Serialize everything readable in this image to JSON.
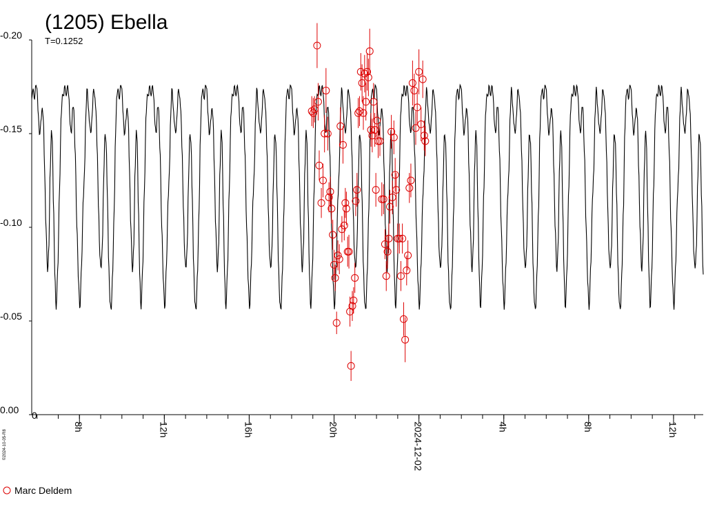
{
  "chart_data": {
    "type": "scatter",
    "title": "(1205) Ebella",
    "subtitle": "T=0.1252",
    "stamp": "©2024-10-05-R8",
    "ylim": [
      0.0,
      0.2
    ],
    "y_inverted": true,
    "y_ticks": [
      {
        "value": 0.2,
        "label": "-0.20"
      },
      {
        "value": 0.15,
        "label": "-0.15"
      },
      {
        "value": 0.1,
        "label": "-0.10"
      },
      {
        "value": 0.05,
        "label": "-0.05"
      },
      {
        "value": 0.0,
        "label": "0.00"
      }
    ],
    "xlim": [
      5.75,
      37.4
    ],
    "x_unit": "hours from 2024-12-01 00:00",
    "x_ticks": [
      {
        "value": 8,
        "label": "8h"
      },
      {
        "value": 12,
        "label": "12h"
      },
      {
        "value": 16,
        "label": "16h"
      },
      {
        "value": 20,
        "label": "20h"
      },
      {
        "value": 24,
        "label": "2024-12-02"
      },
      {
        "value": 28,
        "label": "4h"
      },
      {
        "value": 32,
        "label": "8h"
      },
      {
        "value": 36,
        "label": "12h"
      }
    ],
    "minor_tick_interval_h": 1,
    "model": {
      "name": "fitted lightcurve",
      "color": "#000000",
      "period_h": 4.0,
      "phase_ref_h": 6.0,
      "profile": [
        [
          0.0,
          0.174
        ],
        [
          0.015,
          0.16
        ],
        [
          0.03,
          0.149
        ],
        [
          0.05,
          0.158
        ],
        [
          0.06,
          0.164
        ],
        [
          0.075,
          0.158
        ],
        [
          0.09,
          0.13
        ],
        [
          0.105,
          0.1
        ],
        [
          0.125,
          0.076
        ],
        [
          0.14,
          0.09
        ],
        [
          0.155,
          0.13
        ],
        [
          0.17,
          0.152
        ],
        [
          0.18,
          0.146
        ],
        [
          0.195,
          0.11
        ],
        [
          0.21,
          0.075
        ],
        [
          0.225,
          0.056
        ],
        [
          0.245,
          0.078
        ],
        [
          0.265,
          0.12
        ],
        [
          0.285,
          0.16
        ],
        [
          0.3,
          0.171
        ],
        [
          0.315,
          0.17
        ],
        [
          0.325,
          0.176
        ],
        [
          0.345,
          0.17
        ],
        [
          0.36,
          0.176
        ],
        [
          0.375,
          0.17
        ],
        [
          0.39,
          0.155
        ],
        [
          0.405,
          0.15
        ],
        [
          0.42,
          0.164
        ],
        [
          0.432,
          0.164
        ],
        [
          0.45,
          0.14
        ],
        [
          0.47,
          0.1
        ],
        [
          0.49,
          0.07
        ],
        [
          0.505,
          0.056
        ],
        [
          0.525,
          0.08
        ],
        [
          0.545,
          0.115
        ],
        [
          0.56,
          0.13
        ],
        [
          0.575,
          0.16
        ],
        [
          0.59,
          0.175
        ],
        [
          0.605,
          0.164
        ],
        [
          0.62,
          0.155
        ],
        [
          0.635,
          0.15
        ],
        [
          0.65,
          0.16
        ],
        [
          0.665,
          0.174
        ],
        [
          0.68,
          0.17
        ],
        [
          0.695,
          0.162
        ],
        [
          0.71,
          0.14
        ],
        [
          0.725,
          0.11
        ],
        [
          0.74,
          0.085
        ],
        [
          0.755,
          0.078
        ],
        [
          0.77,
          0.09
        ],
        [
          0.785,
          0.125
        ],
        [
          0.8,
          0.15
        ],
        [
          0.815,
          0.145
        ],
        [
          0.83,
          0.115
        ],
        [
          0.845,
          0.08
        ],
        [
          0.86,
          0.06
        ],
        [
          0.875,
          0.056
        ],
        [
          0.89,
          0.075
        ],
        [
          0.91,
          0.11
        ],
        [
          0.925,
          0.15
        ],
        [
          0.94,
          0.17
        ],
        [
          0.955,
          0.174
        ],
        [
          0.97,
          0.168
        ],
        [
          0.985,
          0.176
        ],
        [
          1.0,
          0.174
        ]
      ]
    },
    "series": [
      {
        "name": "Marc Deldem",
        "color": "#dd0000",
        "marker": "open-circle",
        "points": [
          [
            18.95,
            0.162,
            0.008
          ],
          [
            19.02,
            0.161,
            0.008
          ],
          [
            19.08,
            0.163,
            0.007
          ],
          [
            19.2,
            0.197,
            0.012
          ],
          [
            19.25,
            0.167,
            0.01
          ],
          [
            19.3,
            0.133,
            0.008
          ],
          [
            19.4,
            0.113,
            0.008
          ],
          [
            19.48,
            0.125,
            0.009
          ],
          [
            19.55,
            0.15,
            0.01
          ],
          [
            19.62,
            0.173,
            0.012
          ],
          [
            19.7,
            0.15,
            0.009
          ],
          [
            19.76,
            0.116,
            0.008
          ],
          [
            19.82,
            0.119,
            0.008
          ],
          [
            19.88,
            0.11,
            0.008
          ],
          [
            19.94,
            0.096,
            0.008
          ],
          [
            20.0,
            0.08,
            0.008
          ],
          [
            20.05,
            0.073,
            0.007
          ],
          [
            20.12,
            0.049,
            0.006
          ],
          [
            20.18,
            0.085,
            0.008
          ],
          [
            20.25,
            0.083,
            0.008
          ],
          [
            20.3,
            0.154,
            0.01
          ],
          [
            20.37,
            0.099,
            0.007
          ],
          [
            20.42,
            0.144,
            0.01
          ],
          [
            20.48,
            0.101,
            0.008
          ],
          [
            20.53,
            0.113,
            0.008
          ],
          [
            20.58,
            0.11,
            0.009
          ],
          [
            20.64,
            0.087,
            0.008
          ],
          [
            20.7,
            0.087,
            0.009
          ],
          [
            20.75,
            0.055,
            0.008
          ],
          [
            20.8,
            0.026,
            0.008
          ],
          [
            20.86,
            0.058,
            0.008
          ],
          [
            20.92,
            0.061,
            0.007
          ],
          [
            20.98,
            0.073,
            0.008
          ],
          [
            21.02,
            0.114,
            0.008
          ],
          [
            21.08,
            0.12,
            0.009
          ],
          [
            21.14,
            0.161,
            0.008
          ],
          [
            21.2,
            0.162,
            0.008
          ],
          [
            21.26,
            0.183,
            0.01
          ],
          [
            21.32,
            0.177,
            0.01
          ],
          [
            21.38,
            0.161,
            0.009
          ],
          [
            21.44,
            0.182,
            0.01
          ],
          [
            21.5,
            0.167,
            0.01
          ],
          [
            21.56,
            0.183,
            0.01
          ],
          [
            21.62,
            0.18,
            0.01
          ],
          [
            21.68,
            0.194,
            0.012
          ],
          [
            21.74,
            0.152,
            0.009
          ],
          [
            21.8,
            0.149,
            0.009
          ],
          [
            21.86,
            0.167,
            0.01
          ],
          [
            21.92,
            0.152,
            0.009
          ],
          [
            21.97,
            0.12,
            0.009
          ],
          [
            22.02,
            0.157,
            0.009
          ],
          [
            22.08,
            0.146,
            0.009
          ],
          [
            22.16,
            0.146,
            0.008
          ],
          [
            22.25,
            0.115,
            0.009
          ],
          [
            22.33,
            0.115,
            0.008
          ],
          [
            22.4,
            0.091,
            0.008
          ],
          [
            22.46,
            0.074,
            0.008
          ],
          [
            22.52,
            0.087,
            0.009
          ],
          [
            22.58,
            0.094,
            0.008
          ],
          [
            22.63,
            0.111,
            0.009
          ],
          [
            22.7,
            0.151,
            0.009
          ],
          [
            22.75,
            0.116,
            0.009
          ],
          [
            22.82,
            0.148,
            0.009
          ],
          [
            22.88,
            0.128,
            0.009
          ],
          [
            22.93,
            0.12,
            0.009
          ],
          [
            23.0,
            0.094,
            0.008
          ],
          [
            23.08,
            0.094,
            0.008
          ],
          [
            23.15,
            0.074,
            0.008
          ],
          [
            23.22,
            0.094,
            0.008
          ],
          [
            23.28,
            0.051,
            0.009
          ],
          [
            23.35,
            0.04,
            0.012
          ],
          [
            23.42,
            0.077,
            0.008
          ],
          [
            23.48,
            0.085,
            0.008
          ],
          [
            23.55,
            0.121,
            0.008
          ],
          [
            23.62,
            0.125,
            0.009
          ],
          [
            23.7,
            0.177,
            0.012
          ],
          [
            23.78,
            0.173,
            0.009
          ],
          [
            23.85,
            0.153,
            0.009
          ],
          [
            23.92,
            0.164,
            0.009
          ],
          [
            24.0,
            0.183,
            0.012
          ],
          [
            24.1,
            0.155,
            0.009
          ],
          [
            24.18,
            0.179,
            0.01
          ],
          [
            24.25,
            0.149,
            0.008
          ],
          [
            24.3,
            0.146,
            0.008
          ]
        ]
      }
    ],
    "legend_position": "bottom-left",
    "grid": false
  }
}
